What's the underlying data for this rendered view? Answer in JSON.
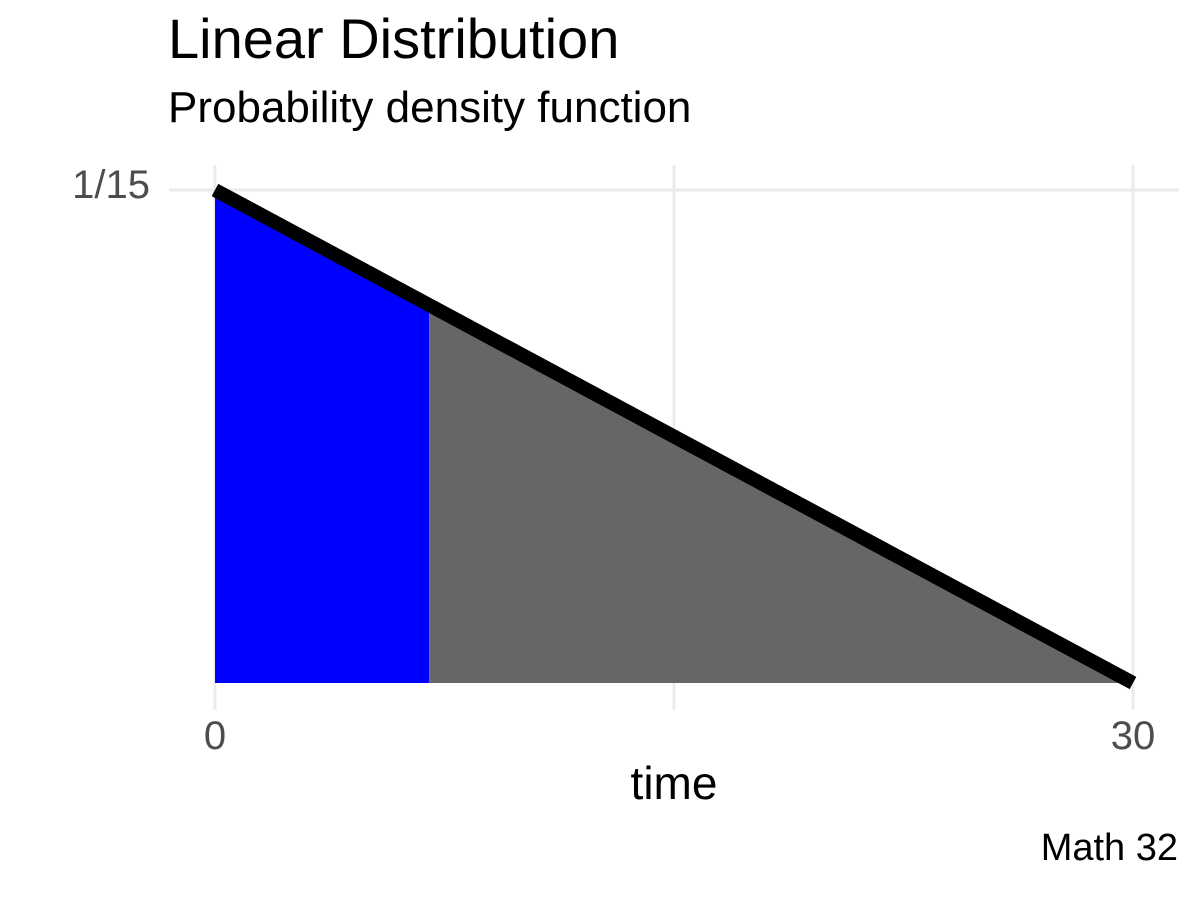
{
  "colors": {
    "background": "#FFFFFF",
    "highlight_fill": "#0000FF",
    "base_fill": "#666666",
    "line": "#000000",
    "gridline": "#EBEBEB",
    "tick_text": "#4D4D4D",
    "text": "#000000"
  },
  "chart_data": {
    "type": "area",
    "title": "Linear Distribution",
    "subtitle": "Probability density function",
    "xlabel": "time",
    "ylabel": "",
    "caption": "Math 32",
    "xlim": [
      0,
      30
    ],
    "ylim": [
      0,
      0.0666667
    ],
    "x_ticks": [
      {
        "value": 0,
        "label": "0"
      },
      {
        "value": 30,
        "label": "30"
      }
    ],
    "y_ticks": [
      {
        "value": 0.0666667,
        "label": "1/15"
      }
    ],
    "grid": {
      "x_values": [
        0,
        15,
        30
      ],
      "y_values": [
        0.0666667
      ]
    },
    "density_line": {
      "description": "linear density decreasing from 1/15 at t=0 to 0 at t=30",
      "points": [
        {
          "x": 0,
          "y": 0.0666667
        },
        {
          "x": 30,
          "y": 0
        }
      ]
    },
    "regions": [
      {
        "name": "shaded-probability-region",
        "x_from": 0,
        "x_to": 7,
        "fill_key": "highlight_fill"
      },
      {
        "name": "remaining-density-region",
        "x_from": 7,
        "x_to": 30,
        "fill_key": "base_fill"
      }
    ]
  }
}
